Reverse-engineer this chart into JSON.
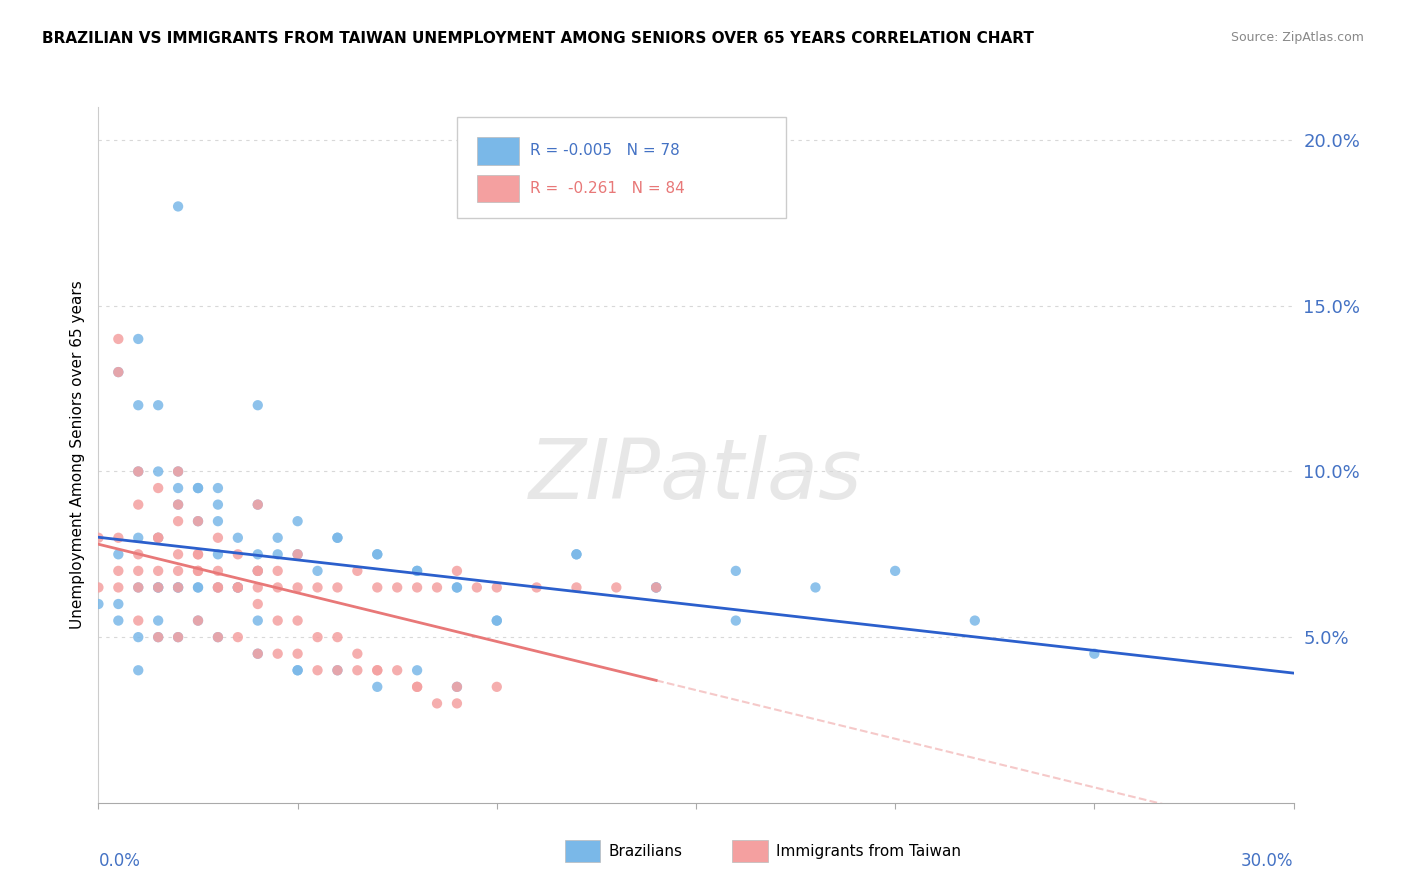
{
  "title": "BRAZILIAN VS IMMIGRANTS FROM TAIWAN UNEMPLOYMENT AMONG SENIORS OVER 65 YEARS CORRELATION CHART",
  "source": "Source: ZipAtlas.com",
  "ylabel": "Unemployment Among Seniors over 65 years",
  "xlim": [
    0.0,
    0.3
  ],
  "ylim": [
    0.0,
    0.21
  ],
  "yticks": [
    0.05,
    0.1,
    0.15,
    0.2
  ],
  "ytick_labels": [
    "5.0%",
    "10.0%",
    "15.0%",
    "20.0%"
  ],
  "xtick_positions": [
    0.0,
    0.05,
    0.1,
    0.15,
    0.2,
    0.25,
    0.3
  ],
  "legend_line1": "R = -0.005   N = 78",
  "legend_line2": "R =  -0.261   N = 84",
  "color_blue": "#7ab8e8",
  "color_pink": "#f4a0a0",
  "color_reg_blue": "#2b5fcc",
  "color_reg_pink": "#e87878",
  "color_tick_label": "#4472c4",
  "watermark": "ZIPatlas",
  "watermark_color": "#d8d8d8",
  "background_color": "#ffffff",
  "grid_color": "#d8d8d8",
  "brazilians_x": [
    0.005,
    0.01,
    0.01,
    0.01,
    0.015,
    0.015,
    0.02,
    0.025,
    0.005,
    0.01,
    0.015,
    0.015,
    0.02,
    0.02,
    0.025,
    0.025,
    0.03,
    0.03,
    0.035,
    0.04,
    0.04,
    0.045,
    0.05,
    0.05,
    0.055,
    0.06,
    0.07,
    0.08,
    0.09,
    0.1,
    0.12,
    0.14,
    0.005,
    0.01,
    0.015,
    0.02,
    0.025,
    0.03,
    0.04,
    0.05,
    0.06,
    0.07,
    0.08,
    0.09,
    0.1,
    0.12,
    0.14,
    0.02,
    0.03,
    0.04,
    0.05,
    0.06,
    0.07,
    0.08,
    0.09,
    0.16,
    0.2,
    0.22,
    0.25,
    0.0,
    0.005,
    0.01,
    0.01,
    0.015,
    0.015,
    0.02,
    0.02,
    0.025,
    0.025,
    0.03,
    0.03,
    0.035,
    0.035,
    0.04,
    0.04,
    0.045,
    0.16,
    0.18
  ],
  "brazilians_y": [
    0.13,
    0.14,
    0.1,
    0.12,
    0.12,
    0.1,
    0.1,
    0.095,
    0.055,
    0.05,
    0.055,
    0.05,
    0.05,
    0.095,
    0.055,
    0.085,
    0.05,
    0.075,
    0.065,
    0.045,
    0.075,
    0.08,
    0.075,
    0.04,
    0.07,
    0.08,
    0.075,
    0.07,
    0.065,
    0.055,
    0.075,
    0.065,
    0.075,
    0.04,
    0.065,
    0.065,
    0.065,
    0.065,
    0.055,
    0.04,
    0.04,
    0.035,
    0.04,
    0.035,
    0.055,
    0.075,
    0.065,
    0.18,
    0.095,
    0.12,
    0.085,
    0.08,
    0.075,
    0.07,
    0.065,
    0.055,
    0.07,
    0.055,
    0.045,
    0.06,
    0.06,
    0.065,
    0.08,
    0.065,
    0.08,
    0.065,
    0.09,
    0.065,
    0.095,
    0.085,
    0.09,
    0.065,
    0.08,
    0.07,
    0.09,
    0.075,
    0.07,
    0.065
  ],
  "taiwan_x": [
    0.0,
    0.0,
    0.005,
    0.005,
    0.005,
    0.01,
    0.01,
    0.01,
    0.015,
    0.015,
    0.015,
    0.02,
    0.02,
    0.02,
    0.025,
    0.025,
    0.03,
    0.03,
    0.035,
    0.04,
    0.04,
    0.04,
    0.045,
    0.05,
    0.005,
    0.01,
    0.015,
    0.02,
    0.02,
    0.025,
    0.025,
    0.03,
    0.035,
    0.04,
    0.045,
    0.05,
    0.055,
    0.06,
    0.065,
    0.07,
    0.075,
    0.08,
    0.085,
    0.09,
    0.095,
    0.1,
    0.11,
    0.12,
    0.13,
    0.14,
    0.01,
    0.015,
    0.02,
    0.025,
    0.03,
    0.035,
    0.04,
    0.045,
    0.05,
    0.055,
    0.06,
    0.065,
    0.07,
    0.08,
    0.09,
    0.1,
    0.005,
    0.01,
    0.015,
    0.02,
    0.025,
    0.03,
    0.035,
    0.04,
    0.045,
    0.05,
    0.055,
    0.06,
    0.065,
    0.07,
    0.075,
    0.08,
    0.085,
    0.09
  ],
  "taiwan_y": [
    0.065,
    0.08,
    0.065,
    0.07,
    0.08,
    0.065,
    0.07,
    0.075,
    0.065,
    0.07,
    0.08,
    0.065,
    0.07,
    0.09,
    0.07,
    0.075,
    0.065,
    0.08,
    0.065,
    0.065,
    0.07,
    0.09,
    0.065,
    0.065,
    0.13,
    0.1,
    0.095,
    0.085,
    0.1,
    0.075,
    0.085,
    0.07,
    0.075,
    0.07,
    0.07,
    0.075,
    0.065,
    0.065,
    0.07,
    0.065,
    0.065,
    0.065,
    0.065,
    0.07,
    0.065,
    0.065,
    0.065,
    0.065,
    0.065,
    0.065,
    0.055,
    0.05,
    0.05,
    0.055,
    0.05,
    0.05,
    0.045,
    0.045,
    0.045,
    0.04,
    0.04,
    0.04,
    0.04,
    0.035,
    0.035,
    0.035,
    0.14,
    0.09,
    0.08,
    0.075,
    0.07,
    0.065,
    0.065,
    0.06,
    0.055,
    0.055,
    0.05,
    0.05,
    0.045,
    0.04,
    0.04,
    0.035,
    0.03,
    0.03
  ]
}
